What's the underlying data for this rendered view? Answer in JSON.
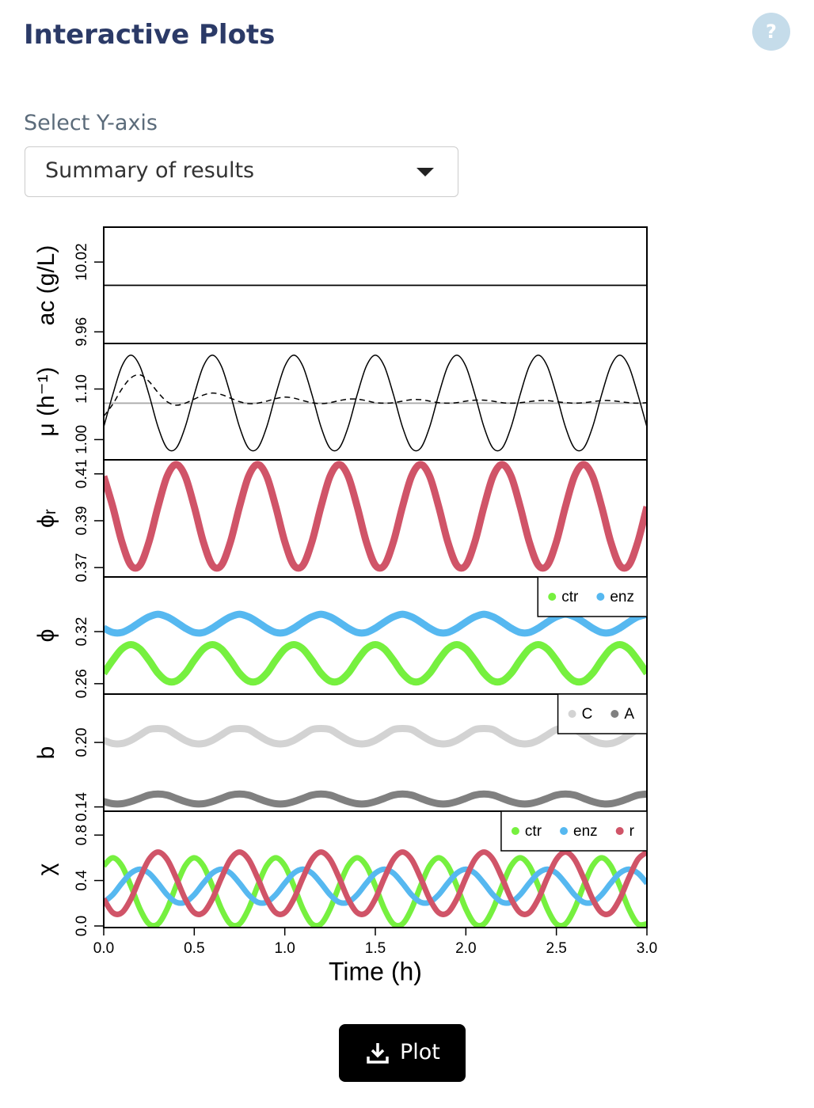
{
  "header": {
    "title": "Interactive Plots",
    "help": "?"
  },
  "select": {
    "label": "Select Y-axis",
    "value": "Summary of results"
  },
  "button": {
    "label": "Plot"
  },
  "chart_data": {
    "type": "line",
    "xlabel": "Time (h)",
    "x": [
      0,
      0.05,
      0.1,
      0.15,
      0.2,
      0.25,
      0.3,
      0.35,
      0.4,
      0.45,
      0.5,
      0.55,
      0.6,
      0.65,
      0.7,
      0.75,
      0.8,
      0.85,
      0.9,
      0.95,
      1,
      1.05,
      1.1,
      1.15,
      1.2,
      1.25,
      1.3,
      1.35,
      1.4,
      1.45,
      1.5,
      1.55,
      1.6,
      1.65,
      1.7,
      1.75,
      1.8,
      1.85,
      1.9,
      1.95,
      2,
      2.05,
      2.1,
      2.15,
      2.2,
      2.25,
      2.3,
      2.35,
      2.4,
      2.45,
      2.5,
      2.55,
      2.6,
      2.65,
      2.7,
      2.75,
      2.8,
      2.85,
      2.9,
      2.95,
      3
    ],
    "xlim": [
      0,
      3
    ],
    "xticks": [
      {
        "value": 0,
        "label": "0.0"
      },
      0.5,
      {
        "value": 1,
        "label": "1.0"
      },
      1.5,
      {
        "value": 2,
        "label": "2.0"
      },
      2.5,
      {
        "value": 3,
        "label": "3.0"
      }
    ],
    "panels": [
      {
        "ylabel": "ac (g/L)",
        "ylim": [
          9.95,
          10.05
        ],
        "yticks": [
          9.96,
          10.02
        ],
        "hline": 10,
        "hline_color": "#000000",
        "series": []
      },
      {
        "ylabel": "μ (h⁻¹)",
        "ylim": [
          0.96,
          1.19
        ],
        "yticks": [
          {
            "value": 1,
            "label": "1.00"
          },
          {
            "value": 1.1,
            "label": "1.10"
          }
        ],
        "hline": 1.072,
        "hline_color": "#aaaaaa",
        "series": [
          {
            "color": "#000000",
            "dash": false,
            "values": [
              1.025,
              1.089,
              1.145,
              1.167,
              1.145,
              1.089,
              1.025,
              0.983,
              0.983,
              1.025,
              1.089,
              1.145,
              1.167,
              1.145,
              1.089,
              1.025,
              0.983,
              0.983,
              1.025,
              1.089,
              1.145,
              1.167,
              1.145,
              1.089,
              1.025,
              0.983,
              0.983,
              1.025,
              1.089,
              1.145,
              1.167,
              1.145,
              1.089,
              1.025,
              0.983,
              0.983,
              1.025,
              1.089,
              1.145,
              1.167,
              1.145,
              1.089,
              1.025,
              0.983,
              0.983,
              1.025,
              1.089,
              1.145,
              1.167,
              1.145,
              1.089,
              1.025,
              0.983,
              0.983,
              1.025,
              1.089,
              1.145,
              1.167,
              1.145,
              1.089,
              1.025
            ]
          },
          {
            "color": "#000000",
            "dash": true,
            "values": [
              1.046,
              1.07,
              1.1,
              1.122,
              1.128,
              1.115,
              1.093,
              1.075,
              1.068,
              1.072,
              1.08,
              1.088,
              1.092,
              1.089,
              1.082,
              1.075,
              1.071,
              1.072,
              1.076,
              1.081,
              1.084,
              1.082,
              1.077,
              1.073,
              1.071,
              1.073,
              1.077,
              1.08,
              1.08,
              1.077,
              1.073,
              1.072,
              1.073,
              1.076,
              1.079,
              1.079,
              1.076,
              1.073,
              1.072,
              1.073,
              1.076,
              1.078,
              1.078,
              1.076,
              1.073,
              1.072,
              1.073,
              1.075,
              1.077,
              1.077,
              1.075,
              1.073,
              1.072,
              1.073,
              1.075,
              1.077,
              1.077,
              1.075,
              1.073,
              1.072,
              1.073
            ]
          }
        ]
      },
      {
        "ylabel": "ϕᵣ",
        "ylim": [
          0.366,
          0.416
        ],
        "yticks": [
          0.37,
          0.39,
          0.41
        ],
        "series": [
          {
            "color": "#d05468",
            "values": [
              0.409,
              0.396,
              0.381,
              0.371,
              0.371,
              0.381,
              0.396,
              0.409,
              0.414,
              0.409,
              0.396,
              0.381,
              0.371,
              0.371,
              0.381,
              0.396,
              0.409,
              0.414,
              0.409,
              0.396,
              0.381,
              0.371,
              0.371,
              0.381,
              0.396,
              0.409,
              0.414,
              0.409,
              0.396,
              0.381,
              0.371,
              0.371,
              0.381,
              0.396,
              0.409,
              0.414,
              0.409,
              0.396,
              0.381,
              0.371,
              0.371,
              0.381,
              0.396,
              0.409,
              0.414,
              0.409,
              0.396,
              0.381,
              0.371,
              0.371,
              0.381,
              0.396,
              0.409,
              0.414,
              0.409,
              0.396,
              0.381,
              0.371,
              0.371,
              0.381,
              0.396
            ]
          }
        ]
      },
      {
        "ylabel": "ϕ",
        "ylim": [
          0.248,
          0.383
        ],
        "yticks": [
          0.26,
          0.32
        ],
        "legend": "top-right",
        "series": [
          {
            "name": "ctr",
            "color": "#76f03f",
            "values": [
              0.272,
              0.287,
              0.3,
              0.305,
              0.3,
              0.287,
              0.272,
              0.263,
              0.263,
              0.272,
              0.287,
              0.3,
              0.305,
              0.3,
              0.287,
              0.272,
              0.263,
              0.263,
              0.272,
              0.287,
              0.3,
              0.305,
              0.3,
              0.287,
              0.272,
              0.263,
              0.263,
              0.272,
              0.287,
              0.3,
              0.305,
              0.3,
              0.287,
              0.272,
              0.263,
              0.263,
              0.272,
              0.287,
              0.3,
              0.305,
              0.3,
              0.287,
              0.272,
              0.263,
              0.263,
              0.272,
              0.287,
              0.3,
              0.305,
              0.3,
              0.287,
              0.272,
              0.263,
              0.263,
              0.272,
              0.287,
              0.3,
              0.305,
              0.3,
              0.287,
              0.272
            ]
          },
          {
            "name": "enz",
            "color": "#56b8f0",
            "values": [
              0.324,
              0.319,
              0.319,
              0.324,
              0.331,
              0.337,
              0.34,
              0.337,
              0.331,
              0.324,
              0.319,
              0.319,
              0.324,
              0.331,
              0.337,
              0.34,
              0.337,
              0.331,
              0.324,
              0.319,
              0.319,
              0.324,
              0.331,
              0.337,
              0.34,
              0.337,
              0.331,
              0.324,
              0.319,
              0.319,
              0.324,
              0.331,
              0.337,
              0.34,
              0.337,
              0.331,
              0.324,
              0.319,
              0.319,
              0.324,
              0.331,
              0.337,
              0.34,
              0.337,
              0.331,
              0.324,
              0.319,
              0.319,
              0.324,
              0.331,
              0.337,
              0.34,
              0.337,
              0.331,
              0.324,
              0.319,
              0.319,
              0.324,
              0.331,
              0.337,
              0.34
            ]
          }
        ]
      },
      {
        "ylabel": "b",
        "ylim": [
          0.136,
          0.245
        ],
        "yticks": [
          0.14,
          {
            "value": 0.2,
            "label": "0.20"
          }
        ],
        "legend": "top-right",
        "series": [
          {
            "name": "C",
            "color": "#d3d3d3",
            "values": [
              0.202,
              0.199,
              0.199,
              0.202,
              0.207,
              0.212,
              0.213,
              0.212,
              0.207,
              0.202,
              0.199,
              0.199,
              0.202,
              0.207,
              0.212,
              0.213,
              0.212,
              0.207,
              0.202,
              0.199,
              0.199,
              0.202,
              0.207,
              0.212,
              0.213,
              0.212,
              0.207,
              0.202,
              0.199,
              0.199,
              0.202,
              0.207,
              0.212,
              0.213,
              0.212,
              0.207,
              0.202,
              0.199,
              0.199,
              0.202,
              0.207,
              0.212,
              0.213,
              0.212,
              0.207,
              0.202,
              0.199,
              0.199,
              0.202,
              0.207,
              0.212,
              0.213,
              0.212,
              0.207,
              0.202,
              0.199,
              0.199,
              0.202,
              0.207,
              0.212,
              0.213
            ]
          },
          {
            "name": "A",
            "color": "#808080",
            "values": [
              0.145,
              0.143,
              0.143,
              0.145,
              0.148,
              0.151,
              0.152,
              0.151,
              0.148,
              0.145,
              0.143,
              0.143,
              0.145,
              0.148,
              0.151,
              0.152,
              0.151,
              0.148,
              0.145,
              0.143,
              0.143,
              0.145,
              0.148,
              0.151,
              0.152,
              0.151,
              0.148,
              0.145,
              0.143,
              0.143,
              0.145,
              0.148,
              0.151,
              0.152,
              0.151,
              0.148,
              0.145,
              0.143,
              0.143,
              0.145,
              0.148,
              0.151,
              0.152,
              0.151,
              0.148,
              0.145,
              0.143,
              0.143,
              0.145,
              0.148,
              0.151,
              0.152,
              0.151,
              0.148,
              0.145,
              0.143,
              0.143,
              0.145,
              0.148,
              0.151,
              0.152
            ]
          }
        ]
      },
      {
        "ylabel": "χ",
        "ylim": [
          -0.014,
          1.01
        ],
        "yticks": [
          {
            "value": 0,
            "label": "0.0"
          },
          0.4,
          0.8
        ],
        "legend": "top-right",
        "series": [
          {
            "name": "ctr",
            "color": "#76f03f",
            "values": [
              0.53,
              0.6,
              0.53,
              0.352,
              0.15,
              0.018,
              0.018,
              0.15,
              0.352,
              0.53,
              0.6,
              0.53,
              0.352,
              0.15,
              0.018,
              0.018,
              0.15,
              0.352,
              0.53,
              0.6,
              0.53,
              0.352,
              0.15,
              0.018,
              0.018,
              0.15,
              0.352,
              0.53,
              0.6,
              0.53,
              0.352,
              0.15,
              0.018,
              0.018,
              0.15,
              0.352,
              0.53,
              0.6,
              0.53,
              0.352,
              0.15,
              0.018,
              0.018,
              0.15,
              0.352,
              0.53,
              0.6,
              0.53,
              0.352,
              0.15,
              0.018,
              0.018,
              0.15,
              0.352,
              0.53,
              0.6,
              0.53,
              0.352,
              0.15,
              0.018,
              0.018
            ]
          },
          {
            "name": "enz",
            "color": "#56b8f0",
            "values": [
              0.209,
              0.275,
              0.376,
              0.465,
              0.5,
              0.465,
              0.376,
              0.275,
              0.209,
              0.209,
              0.275,
              0.376,
              0.465,
              0.5,
              0.465,
              0.376,
              0.275,
              0.209,
              0.209,
              0.275,
              0.376,
              0.465,
              0.5,
              0.465,
              0.376,
              0.275,
              0.209,
              0.209,
              0.275,
              0.376,
              0.465,
              0.5,
              0.465,
              0.376,
              0.275,
              0.209,
              0.209,
              0.275,
              0.376,
              0.465,
              0.5,
              0.465,
              0.376,
              0.275,
              0.209,
              0.209,
              0.275,
              0.376,
              0.465,
              0.5,
              0.465,
              0.376,
              0.275,
              0.209,
              0.209,
              0.275,
              0.376,
              0.465,
              0.5,
              0.465,
              0.376
            ]
          },
          {
            "name": "r",
            "color": "#d05468",
            "values": [
              0.238,
              0.117,
              0.117,
              0.238,
              0.423,
              0.586,
              0.65,
              0.586,
              0.423,
              0.238,
              0.117,
              0.117,
              0.238,
              0.423,
              0.586,
              0.65,
              0.586,
              0.423,
              0.238,
              0.117,
              0.117,
              0.238,
              0.423,
              0.586,
              0.65,
              0.586,
              0.423,
              0.238,
              0.117,
              0.117,
              0.238,
              0.423,
              0.586,
              0.65,
              0.586,
              0.423,
              0.238,
              0.117,
              0.117,
              0.238,
              0.423,
              0.586,
              0.65,
              0.586,
              0.423,
              0.238,
              0.117,
              0.117,
              0.238,
              0.423,
              0.586,
              0.65,
              0.586,
              0.423,
              0.238,
              0.117,
              0.117,
              0.238,
              0.423,
              0.586,
              0.65
            ]
          }
        ]
      }
    ]
  }
}
